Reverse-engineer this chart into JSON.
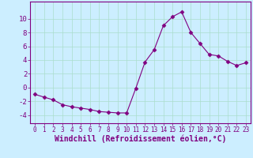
{
  "x": [
    0,
    1,
    2,
    3,
    4,
    5,
    6,
    7,
    8,
    9,
    10,
    11,
    12,
    13,
    14,
    15,
    16,
    17,
    18,
    19,
    20,
    21,
    22,
    23
  ],
  "y": [
    -1.0,
    -1.4,
    -1.8,
    -2.5,
    -2.8,
    -3.0,
    -3.2,
    -3.5,
    -3.6,
    -3.7,
    -3.7,
    -0.1,
    3.7,
    5.5,
    9.0,
    10.3,
    11.0,
    8.0,
    6.4,
    4.8,
    4.6,
    3.8,
    3.2,
    3.6
  ],
  "line_color": "#800080",
  "marker": "D",
  "marker_size": 2.5,
  "bg_color": "#cceeff",
  "grid_color": "#aaddcc",
  "xlabel": "Windchill (Refroidissement éolien,°C)",
  "xlabel_fontsize": 7,
  "yticks": [
    -4,
    -2,
    0,
    2,
    4,
    6,
    8,
    10
  ],
  "xlim": [
    -0.5,
    23.5
  ],
  "ylim": [
    -5.2,
    12.5
  ],
  "xtick_fontsize": 5.5,
  "ytick_fontsize": 6.5,
  "tick_color": "#800080",
  "spine_color": "#800080"
}
